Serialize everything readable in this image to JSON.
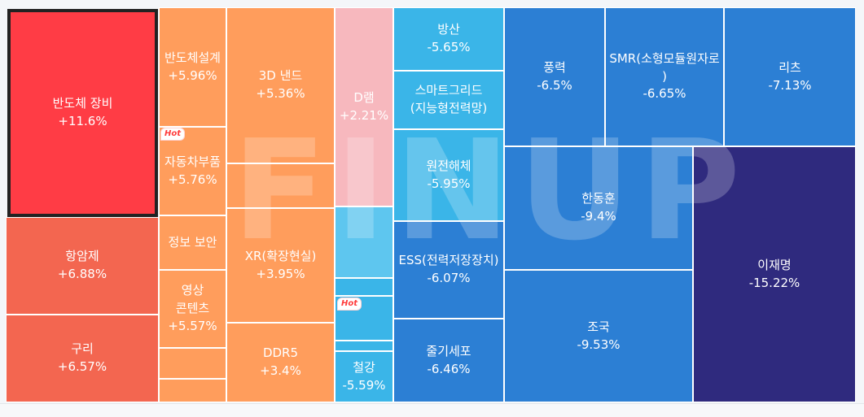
{
  "colors": {
    "red_strong": "#ff3c45",
    "red": "#f36650",
    "orange": "#ff9d5c",
    "pink": "#f7b8be",
    "sky": "#3ab5e8",
    "light_sky": "#5ec6ef",
    "blue": "#2c7fd4",
    "navy": "#2f2a7e"
  },
  "hot_badge": "Hot",
  "watermark": "FINUP",
  "tiles": {
    "semicon_equip": {
      "name": "반도체 장비",
      "change": "+11.6%"
    },
    "hangam": {
      "name": "항암제",
      "change": "+6.88%"
    },
    "copper": {
      "name": "구리",
      "change": "+6.57%"
    },
    "semicon_design": {
      "name": "반도체설계",
      "change": "+5.96%"
    },
    "auto_parts": {
      "name": "자동차부품",
      "change": "+5.76%"
    },
    "info_sec": {
      "name": "정보 보안",
      "change": ""
    },
    "video_content": {
      "name": "영상 콘텐츠",
      "change": "+5.57%"
    },
    "nand3d": {
      "name": "3D 낸드",
      "change": "+5.36%"
    },
    "xr": {
      "name": "XR(확장현실)",
      "change": "+3.95%"
    },
    "ddr5": {
      "name": "DDR5",
      "change": "+3.4%"
    },
    "dram": {
      "name": "D램",
      "change": "+2.21%"
    },
    "steel": {
      "name": "철강",
      "change": "-5.59%"
    },
    "defense": {
      "name": "방산",
      "change": "-5.65%"
    },
    "smart_grid": {
      "name": "스마트그리드(지능형전력망)",
      "change": ""
    },
    "nuclear_decom": {
      "name": "원전해체",
      "change": "-5.95%"
    },
    "ess": {
      "name": "ESS(전력저장장치)",
      "change": "-6.07%"
    },
    "stem_cell": {
      "name": "줄기세포",
      "change": "-6.46%"
    },
    "wind": {
      "name": "풍력",
      "change": "-6.5%"
    },
    "smr": {
      "name": "SMR(소형모듈원자로)",
      "change": "-6.65%"
    },
    "reits": {
      "name": "리츠",
      "change": "-7.13%"
    },
    "han_donghoon": {
      "name": "한동훈",
      "change": "-9.4%"
    },
    "cho_kuk": {
      "name": "조국",
      "change": "-9.53%"
    },
    "lee_jaemyung": {
      "name": "이재명",
      "change": "-15.22%"
    }
  }
}
